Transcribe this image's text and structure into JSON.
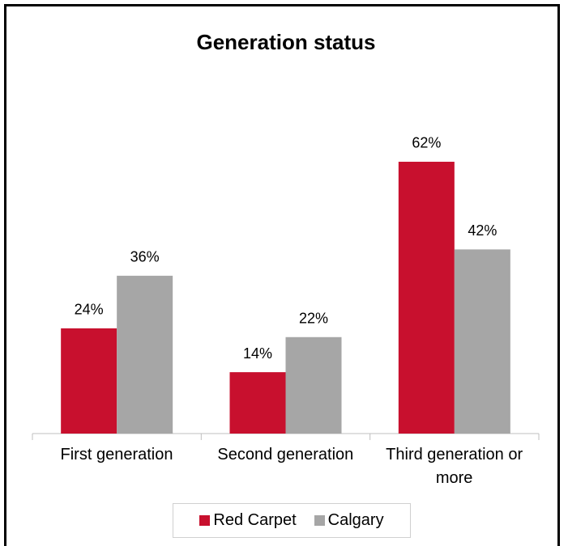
{
  "chart_data": {
    "type": "bar",
    "title": "Generation status",
    "categories": [
      "First generation",
      "Second generation",
      "Third generation or more"
    ],
    "series": [
      {
        "name": "Red Carpet",
        "color": "#c8102e",
        "values": [
          24,
          14,
          62
        ],
        "value_labels": [
          "24%",
          "14%",
          "62%"
        ]
      },
      {
        "name": "Calgary",
        "color": "#a6a6a6",
        "values": [
          36,
          22,
          42
        ],
        "value_labels": [
          "36%",
          "22%",
          "42%"
        ]
      }
    ],
    "legend": "bottom"
  }
}
